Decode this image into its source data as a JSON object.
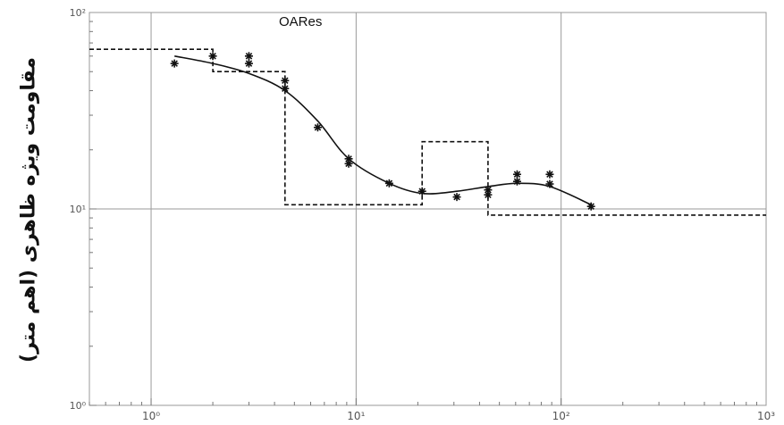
{
  "chart_data": {
    "type": "scatter",
    "title": "OARes",
    "ylabel": "مقاومت ویژه ظاهری (اهم متر)",
    "xlabel": "",
    "x_scale": "log",
    "y_scale": "log",
    "xlim": [
      0.5,
      1000
    ],
    "ylim": [
      1,
      100
    ],
    "grid": true,
    "x_major_ticks": [
      1,
      10,
      100,
      1000
    ],
    "x_tick_labels": [
      "10⁰",
      "10¹",
      "10²",
      "10³"
    ],
    "y_major_ticks": [
      1,
      10,
      100
    ],
    "y_tick_labels": [
      "10⁰",
      "10¹",
      "10²"
    ],
    "series": [
      {
        "kind": "points",
        "marker": "asterisk",
        "x": [
          1.3,
          2,
          3,
          3,
          4.5,
          4.5,
          6.5,
          9.2,
          9.2,
          14.5,
          21,
          31,
          44,
          44,
          61,
          61,
          88,
          88,
          140
        ],
        "y": [
          55,
          60,
          60,
          55,
          45,
          41,
          26,
          18,
          17,
          13.5,
          12.3,
          11.5,
          12.5,
          11.8,
          13.8,
          15,
          13.4,
          15,
          10.3
        ]
      },
      {
        "kind": "fit-curve",
        "style": "solid",
        "x": [
          1.3,
          2,
          3,
          4.5,
          6.5,
          9.2,
          14.5,
          21,
          31,
          44,
          61,
          88,
          140
        ],
        "y": [
          60,
          55,
          49,
          40,
          28,
          18,
          13.5,
          12,
          12.3,
          13,
          13.5,
          13,
          10.5
        ]
      },
      {
        "kind": "layer-model",
        "style": "dashed",
        "x": [
          0.5,
          2,
          2,
          4.5,
          4.5,
          21,
          21,
          44,
          44,
          1000
        ],
        "y": [
          65,
          65,
          50,
          50,
          10.5,
          10.5,
          22,
          22,
          9.3,
          9.3
        ]
      }
    ]
  }
}
